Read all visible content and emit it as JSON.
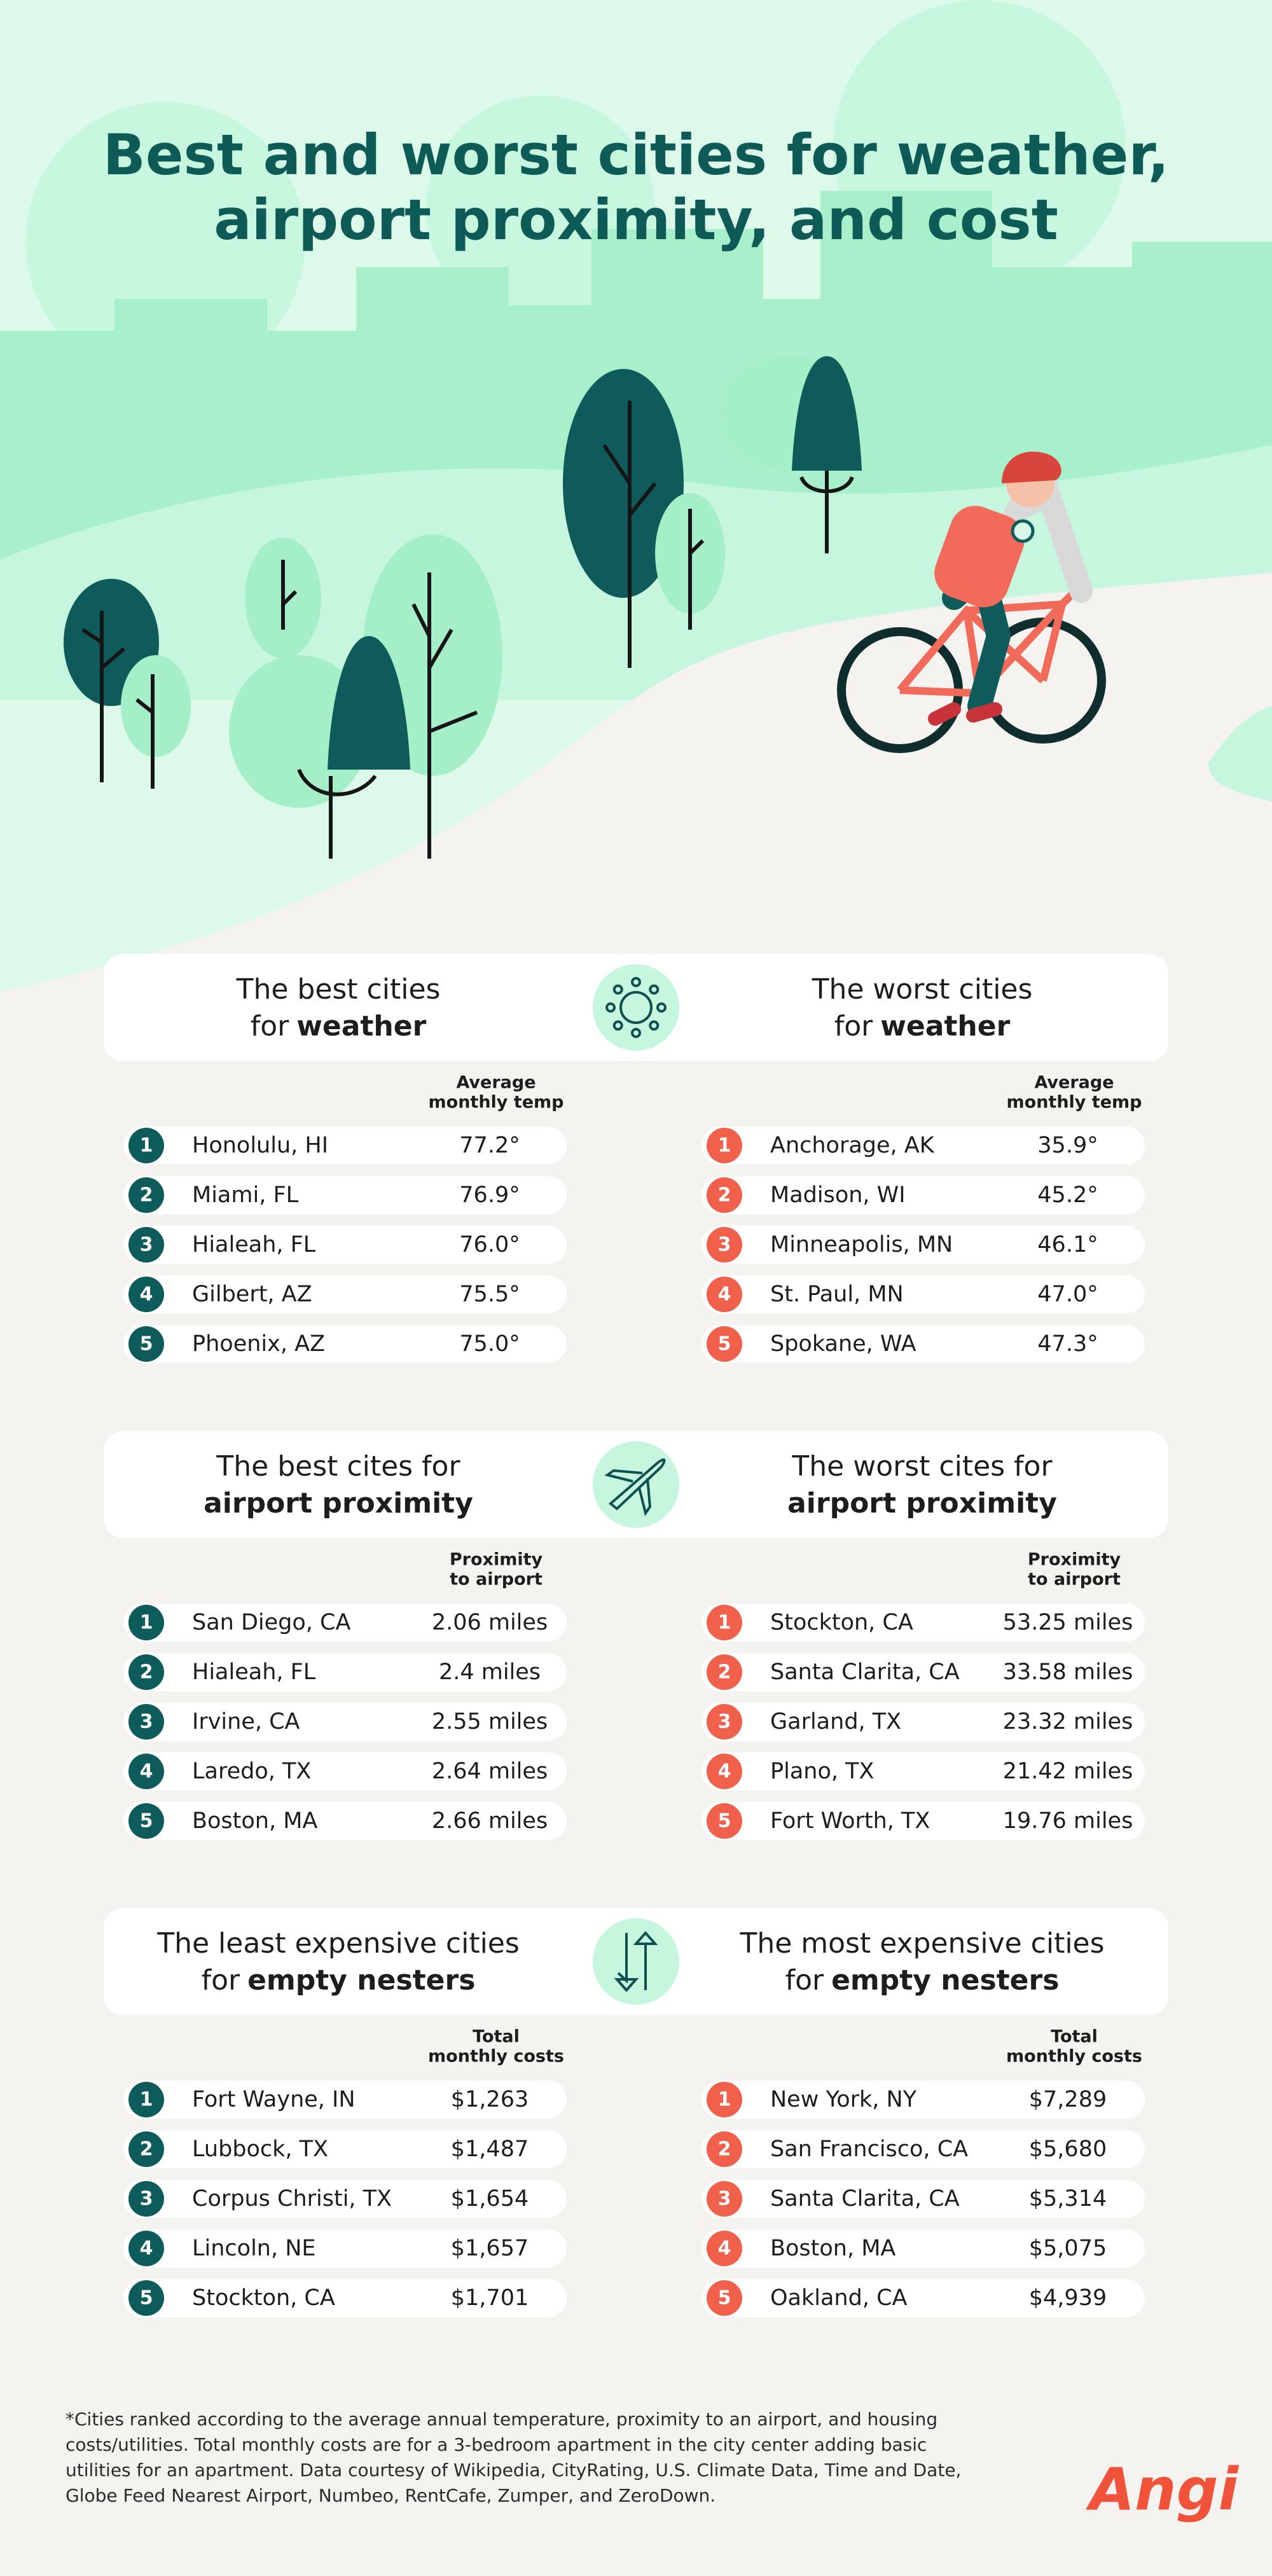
{
  "title": {
    "line1": "Best and worst cities for weather,",
    "line2": "airport proximity, and cost"
  },
  "sections": [
    {
      "best": {
        "heading": {
          "line1": "The best cities",
          "line2": "for",
          "line2_bold": "weather"
        },
        "column": [
          "Average",
          "monthly temp"
        ],
        "rows": [
          {
            "rank": 1,
            "city": "Honolulu, HI",
            "value": "77.2°"
          },
          {
            "rank": 2,
            "city": "Miami, FL",
            "value": "76.9°"
          },
          {
            "rank": 3,
            "city": "Hialeah, FL",
            "value": "76.0°"
          },
          {
            "rank": 4,
            "city": "Gilbert, AZ",
            "value": "75.5°"
          },
          {
            "rank": 5,
            "city": "Phoenix, AZ",
            "value": "75.0°"
          }
        ]
      },
      "worst": {
        "heading": {
          "line1": "The worst cities",
          "line2": "for",
          "line2_bold": "weather"
        },
        "column": [
          "Average",
          "monthly temp"
        ],
        "rows": [
          {
            "rank": 1,
            "city": "Anchorage, AK",
            "value": "35.9°"
          },
          {
            "rank": 2,
            "city": "Madison, WI",
            "value": "45.2°"
          },
          {
            "rank": 3,
            "city": "Minneapolis, MN",
            "value": "46.1°"
          },
          {
            "rank": 4,
            "city": "St. Paul, MN",
            "value": "47.0°"
          },
          {
            "rank": 5,
            "city": "Spokane, WA",
            "value": "47.3°"
          }
        ]
      }
    },
    {
      "best": {
        "heading": {
          "line1": "The best cites for",
          "line2_bold": "airport proximity"
        },
        "column": [
          "Proximity",
          "to airport"
        ],
        "rows": [
          {
            "rank": 1,
            "city": "San Diego, CA",
            "value": "2.06 miles"
          },
          {
            "rank": 2,
            "city": "Hialeah, FL",
            "value": "2.4 miles"
          },
          {
            "rank": 3,
            "city": "Irvine, CA",
            "value": "2.55 miles"
          },
          {
            "rank": 4,
            "city": "Laredo, TX",
            "value": "2.64 miles"
          },
          {
            "rank": 5,
            "city": "Boston, MA",
            "value": "2.66 miles"
          }
        ]
      },
      "worst": {
        "heading": {
          "line1": "The worst cites for",
          "line2_bold": "airport proximity"
        },
        "column": [
          "Proximity",
          "to airport"
        ],
        "rows": [
          {
            "rank": 1,
            "city": "Stockton, CA",
            "value": "53.25 miles"
          },
          {
            "rank": 2,
            "city": "Santa Clarita, CA",
            "value": "33.58 miles"
          },
          {
            "rank": 3,
            "city": "Garland, TX",
            "value": "23.32 miles"
          },
          {
            "rank": 4,
            "city": "Plano, TX",
            "value": "21.42 miles"
          },
          {
            "rank": 5,
            "city": "Fort Worth, TX",
            "value": "19.76 miles"
          }
        ]
      }
    },
    {
      "best": {
        "heading": {
          "line1": "The least expensive cities",
          "line2": "for",
          "line2_bold": "empty nesters"
        },
        "column": [
          "Total",
          "monthly costs"
        ],
        "rows": [
          {
            "rank": 1,
            "city": "Fort Wayne, IN",
            "value": "$1,263"
          },
          {
            "rank": 2,
            "city": "Lubbock, TX",
            "value": "$1,487"
          },
          {
            "rank": 3,
            "city": "Corpus Christi, TX",
            "value": "$1,654"
          },
          {
            "rank": 4,
            "city": "Lincoln, NE",
            "value": "$1,657"
          },
          {
            "rank": 5,
            "city": "Stockton, CA",
            "value": "$1,701"
          }
        ]
      },
      "worst": {
        "heading": {
          "line1": "The most expensive cities",
          "line2": "for",
          "line2_bold": "empty nesters"
        },
        "column": [
          "Total",
          "monthly costs"
        ],
        "rows": [
          {
            "rank": 1,
            "city": "New York, NY",
            "value": "$7,289"
          },
          {
            "rank": 2,
            "city": "San Francisco, CA",
            "value": "$5,680"
          },
          {
            "rank": 3,
            "city": "Santa Clarita, CA",
            "value": "$5,314"
          },
          {
            "rank": 4,
            "city": "Boston, MA",
            "value": "$5,075"
          },
          {
            "rank": 5,
            "city": "Oakland, CA",
            "value": "$4,939"
          }
        ]
      }
    }
  ],
  "footnote": [
    "*Cities ranked according to the average annual temperature, proximity to an airport, and housing",
    "costs/utilities. Total monthly costs are for a 3-bedroom apartment in the city center adding basic",
    "utilities for an apartment. Data courtesy of Wikipedia, CityRating, U.S. Climate Data, Time and Date,",
    "Globe Feed Nearest Airport, Numbeo, RentCafe, Zumper, and ZeroDown."
  ],
  "logo": "Angi"
}
